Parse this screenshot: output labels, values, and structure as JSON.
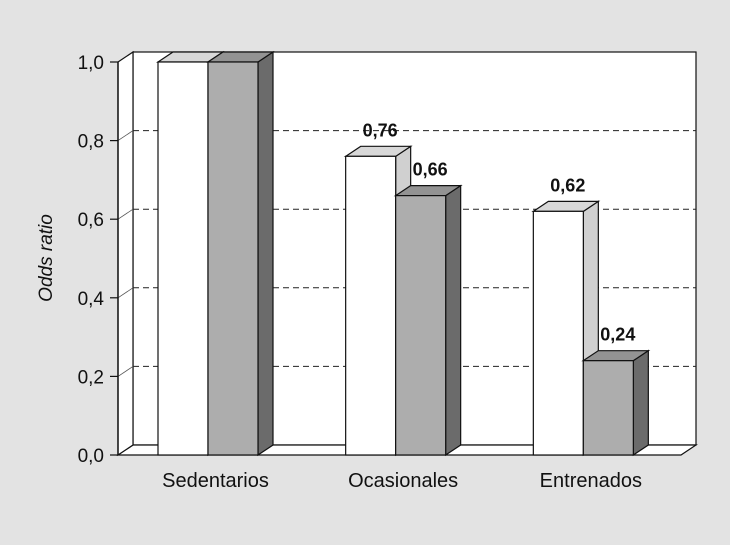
{
  "chart_data": {
    "type": "bar",
    "title": "",
    "xlabel": "",
    "ylabel": "Odds ratio",
    "ylim": [
      0,
      1
    ],
    "yticks": [
      "0,0",
      "0,2",
      "0,4",
      "0,6",
      "0,8",
      "1,0"
    ],
    "categories": [
      "Sedentarios",
      "Ocasionales",
      "Entrenados"
    ],
    "series": [
      {
        "values": [
          1.0,
          0.76,
          0.62
        ],
        "labels": [
          "",
          "0,76",
          "0,62"
        ]
      },
      {
        "values": [
          1.0,
          0.66,
          0.24
        ],
        "labels": [
          "",
          "0,66",
          "0,24"
        ]
      }
    ],
    "grid": "dashed horizontal",
    "legend": "none",
    "style": "3d",
    "colors": {
      "background": "#e3e3e3",
      "plot": "#ffffff",
      "series1": "#ffffff",
      "series2": "#adadad"
    }
  }
}
